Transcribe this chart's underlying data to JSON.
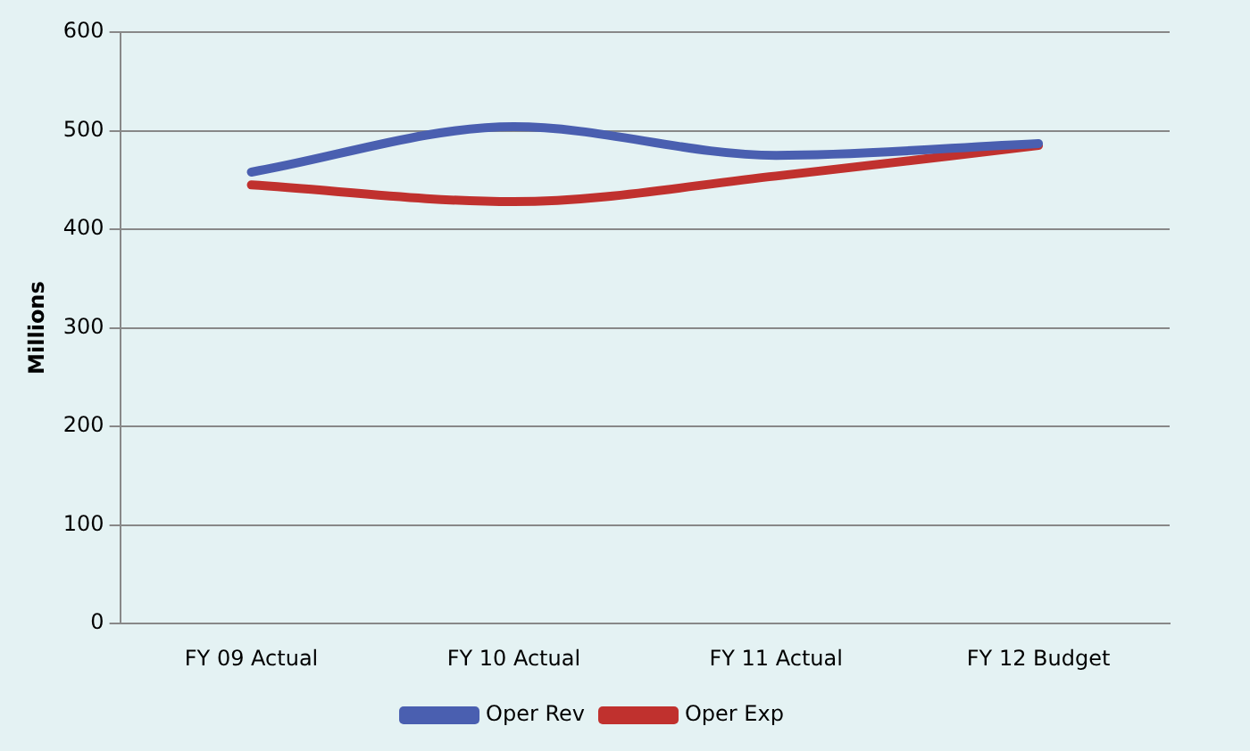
{
  "chart_data": {
    "type": "line",
    "ylabel": "Millions",
    "categories": [
      "FY 09 Actual",
      "FY 10 Actual",
      "FY 11 Actual",
      "FY 12 Budget"
    ],
    "series": [
      {
        "name": "Oper Rev",
        "color": "#4a5fb0",
        "values": [
          458,
          504,
          475,
          487
        ]
      },
      {
        "name": "Oper Exp",
        "color": "#c0312e",
        "values": [
          445,
          428,
          454,
          485
        ]
      }
    ],
    "ylim": [
      0,
      600
    ],
    "yticks": [
      0,
      100,
      200,
      300,
      400,
      500,
      600
    ],
    "grid": "y",
    "legend": "bottom",
    "marker": "none",
    "line_style": "solid"
  }
}
